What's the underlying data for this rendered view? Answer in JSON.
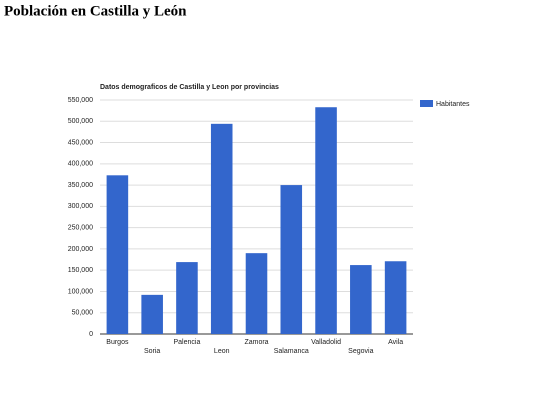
{
  "page_title": "Población en Castilla y León",
  "chart_data": {
    "type": "bar",
    "title": "Datos demograficos de Castilla y Leon por provincias",
    "categories": [
      "Burgos",
      "Soria",
      "Palencia",
      "Leon",
      "Zamora",
      "Salamanca",
      "Valladolid",
      "Segovia",
      "Avila"
    ],
    "series": [
      {
        "name": "Habitantes",
        "color": "#3366cc",
        "values": [
          373000,
          92000,
          169000,
          494000,
          190000,
          350000,
          533000,
          162000,
          171000
        ]
      }
    ],
    "ylim": [
      0,
      550000
    ],
    "yticks": [
      0,
      {
        "value": 50000,
        "label": "50,000"
      },
      {
        "value": 100000,
        "label": "100,000"
      },
      {
        "value": 150000,
        "label": "150,000"
      },
      {
        "value": 200000,
        "label": "200,000"
      },
      {
        "value": 250000,
        "label": "250,000"
      },
      {
        "value": 300000,
        "label": "300,000"
      },
      {
        "value": 350000,
        "label": "350,000"
      },
      {
        "value": 400000,
        "label": "400,000"
      },
      {
        "value": 450000,
        "label": "450,000"
      },
      {
        "value": 500000,
        "label": "500,000"
      },
      {
        "value": 550000,
        "label": "550,000"
      }
    ],
    "grid": true,
    "legend": "right"
  }
}
